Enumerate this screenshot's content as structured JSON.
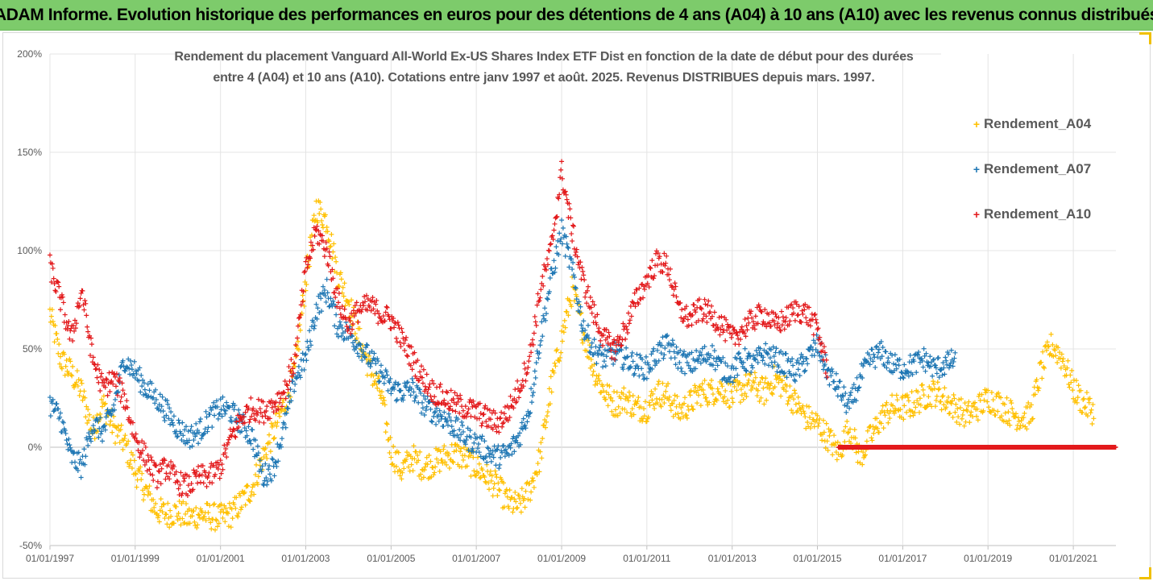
{
  "banner": {
    "title": "ADAM Informe. Evolution historique des performances en euros pour des détentions de 4 ans (A04) à 10 ans (A10) avec les revenus connus distribués"
  },
  "chart_data": {
    "type": "scatter",
    "title_line1": "Rendement du placement Vanguard All-World Ex-US Shares Index ETF Dist en fonction de la date de début pour des durées",
    "title_line2": "entre 4 (A04) et 10 ans (A10). Cotations entre janv 1997 et août. 2025. Revenus DISTRIBUES depuis mars. 1997.",
    "xlim": [
      "1997-01-01",
      "2022-01-01"
    ],
    "ylim": [
      -50,
      200
    ],
    "y_ticks": [
      -50,
      0,
      50,
      100,
      150,
      200
    ],
    "y_tick_labels": [
      "-50%",
      "0%",
      "50%",
      "100%",
      "150%",
      "200%"
    ],
    "x_ticks": [
      "1997-01-01",
      "1999-01-01",
      "2001-01-01",
      "2003-01-01",
      "2005-01-01",
      "2007-01-01",
      "2009-01-01",
      "2011-01-01",
      "2013-01-01",
      "2015-01-01",
      "2017-01-01",
      "2019-01-01",
      "2021-01-01"
    ],
    "x_tick_labels": [
      "01/01/1997",
      "01/01/1999",
      "01/01/2001",
      "01/01/2003",
      "01/01/2005",
      "01/01/2007",
      "01/01/2009",
      "01/01/2011",
      "01/01/2013",
      "01/01/2015",
      "01/01/2017",
      "01/01/2019",
      "01/01/2021"
    ],
    "grid": "horizontal",
    "legend_position": "right",
    "marker": "+",
    "series": [
      {
        "name": "Rendement_A04",
        "color": "#ffc000",
        "x": [
          "1997-01-01",
          "1997-04-01",
          "1997-07-01",
          "1997-10-01",
          "1998-01-01",
          "1998-04-01",
          "1998-07-01",
          "1998-10-01",
          "1999-01-01",
          "1999-04-01",
          "1999-07-01",
          "1999-10-01",
          "2000-01-01",
          "2000-04-01",
          "2000-07-01",
          "2000-10-01",
          "2001-01-01",
          "2001-04-01",
          "2001-07-01",
          "2001-10-01",
          "2002-01-01",
          "2002-04-01",
          "2002-07-01",
          "2002-10-01",
          "2003-01-01",
          "2003-04-01",
          "2003-07-01",
          "2003-10-01",
          "2004-01-01",
          "2004-04-01",
          "2004-07-01",
          "2004-10-01",
          "2005-01-01",
          "2005-04-01",
          "2005-07-01",
          "2005-10-01",
          "2006-01-01",
          "2006-04-01",
          "2006-07-01",
          "2006-10-01",
          "2007-01-01",
          "2007-04-01",
          "2007-07-01",
          "2007-10-01",
          "2008-01-01",
          "2008-04-01",
          "2008-07-01",
          "2008-10-01",
          "2009-01-01",
          "2009-04-01",
          "2009-07-01",
          "2009-10-01",
          "2010-01-01",
          "2010-04-01",
          "2010-07-01",
          "2010-10-01",
          "2011-01-01",
          "2011-04-01",
          "2011-07-01",
          "2011-10-01",
          "2012-01-01",
          "2012-04-01",
          "2012-07-01",
          "2012-10-01",
          "2013-01-01",
          "2013-04-01",
          "2013-07-01",
          "2013-10-01",
          "2014-01-01",
          "2014-04-01",
          "2014-07-01",
          "2014-10-01",
          "2015-01-01",
          "2015-04-01",
          "2015-07-01",
          "2015-10-01",
          "2016-01-01",
          "2016-04-01",
          "2016-07-01",
          "2016-10-01",
          "2017-01-01",
          "2017-04-01",
          "2017-07-01",
          "2017-10-01",
          "2018-01-01",
          "2018-04-01",
          "2018-07-01",
          "2018-10-01",
          "2019-01-01",
          "2019-04-01",
          "2019-07-01",
          "2019-10-01",
          "2020-01-01",
          "2020-04-01",
          "2020-07-01",
          "2020-10-01",
          "2021-01-01",
          "2021-04-01",
          "2021-07-01"
        ],
        "y": [
          68,
          45,
          38,
          28,
          8,
          22,
          10,
          2,
          -12,
          -22,
          -32,
          -34,
          -33,
          -36,
          -34,
          -35,
          -36,
          -34,
          -28,
          -20,
          -5,
          8,
          22,
          38,
          85,
          122,
          115,
          88,
          75,
          55,
          40,
          28,
          -2,
          -12,
          -5,
          -10,
          -8,
          -5,
          -3,
          -6,
          -10,
          -15,
          -20,
          -28,
          -30,
          -22,
          -5,
          30,
          55,
          80,
          60,
          40,
          28,
          22,
          25,
          20,
          20,
          28,
          26,
          18,
          22,
          28,
          28,
          30,
          26,
          30,
          32,
          28,
          35,
          30,
          22,
          15,
          12,
          5,
          -3,
          10,
          -5,
          5,
          15,
          20,
          20,
          22,
          26,
          28,
          24,
          20,
          16,
          20,
          25,
          22,
          18,
          15,
          16,
          40,
          52,
          45,
          30,
          22,
          18
        ],
        "spread": 7
      },
      {
        "name": "Rendement_A07",
        "color": "#1f77b4",
        "x": [
          "1997-01-01",
          "1997-04-01",
          "1997-07-01",
          "1997-10-01",
          "1998-01-01",
          "1998-04-01",
          "1998-07-01",
          "1998-10-01",
          "1999-01-01",
          "1999-04-01",
          "1999-07-01",
          "1999-10-01",
          "2000-01-01",
          "2000-04-01",
          "2000-07-01",
          "2000-10-01",
          "2001-01-01",
          "2001-04-01",
          "2001-07-01",
          "2001-10-01",
          "2002-01-01",
          "2002-04-01",
          "2002-07-01",
          "2002-10-01",
          "2003-01-01",
          "2003-04-01",
          "2003-07-01",
          "2003-10-01",
          "2004-01-01",
          "2004-04-01",
          "2004-07-01",
          "2004-10-01",
          "2005-01-01",
          "2005-04-01",
          "2005-07-01",
          "2005-10-01",
          "2006-01-01",
          "2006-04-01",
          "2006-07-01",
          "2006-10-01",
          "2007-01-01",
          "2007-04-01",
          "2007-07-01",
          "2007-10-01",
          "2008-01-01",
          "2008-04-01",
          "2008-07-01",
          "2008-10-01",
          "2009-01-01",
          "2009-04-01",
          "2009-07-01",
          "2009-10-01",
          "2010-01-01",
          "2010-04-01",
          "2010-07-01",
          "2010-10-01",
          "2011-01-01",
          "2011-04-01",
          "2011-07-01",
          "2011-10-01",
          "2012-01-01",
          "2012-04-01",
          "2012-07-01",
          "2012-10-01",
          "2013-01-01",
          "2013-04-01",
          "2013-07-01",
          "2013-10-01",
          "2014-01-01",
          "2014-04-01",
          "2014-07-01",
          "2014-10-01",
          "2015-01-01",
          "2015-04-01",
          "2015-07-01",
          "2015-10-01",
          "2016-01-01",
          "2016-04-01",
          "2016-07-01",
          "2016-10-01",
          "2017-01-01",
          "2017-04-01",
          "2017-07-01",
          "2017-10-01",
          "2018-01-01",
          "2018-04-01"
        ],
        "y": [
          22,
          15,
          -5,
          -10,
          12,
          8,
          20,
          45,
          38,
          30,
          25,
          18,
          10,
          5,
          8,
          15,
          20,
          18,
          12,
          5,
          -15,
          -10,
          10,
          35,
          45,
          70,
          80,
          62,
          58,
          52,
          45,
          38,
          30,
          28,
          30,
          22,
          18,
          15,
          10,
          5,
          2,
          -2,
          -5,
          -3,
          5,
          20,
          55,
          85,
          110,
          90,
          62,
          50,
          45,
          48,
          45,
          42,
          40,
          48,
          52,
          45,
          42,
          45,
          48,
          40,
          38,
          45,
          42,
          48,
          45,
          42,
          38,
          45,
          52,
          38,
          30,
          20,
          35,
          45,
          48,
          42,
          40,
          42,
          45,
          40,
          42,
          45
        ],
        "spread": 6
      },
      {
        "name": "Rendement_A10",
        "color": "#e31a1c",
        "x": [
          "1997-01-01",
          "1997-04-01",
          "1997-07-01",
          "1997-10-01",
          "1998-01-01",
          "1998-04-01",
          "1998-07-01",
          "1998-10-01",
          "1999-01-01",
          "1999-04-01",
          "1999-07-01",
          "1999-10-01",
          "2000-01-01",
          "2000-04-01",
          "2000-07-01",
          "2000-10-01",
          "2001-01-01",
          "2001-04-01",
          "2001-07-01",
          "2001-10-01",
          "2002-01-01",
          "2002-04-01",
          "2002-07-01",
          "2002-10-01",
          "2003-01-01",
          "2003-04-01",
          "2003-07-01",
          "2003-10-01",
          "2004-01-01",
          "2004-04-01",
          "2004-07-01",
          "2004-10-01",
          "2005-01-01",
          "2005-04-01",
          "2005-07-01",
          "2005-10-01",
          "2006-01-01",
          "2006-04-01",
          "2006-07-01",
          "2006-10-01",
          "2007-01-01",
          "2007-04-01",
          "2007-07-01",
          "2007-10-01",
          "2008-01-01",
          "2008-04-01",
          "2008-07-01",
          "2008-10-01",
          "2009-01-01",
          "2009-04-01",
          "2009-07-01",
          "2009-10-01",
          "2010-01-01",
          "2010-04-01",
          "2010-07-01",
          "2010-10-01",
          "2011-01-01",
          "2011-04-01",
          "2011-07-01",
          "2011-10-01",
          "2012-01-01",
          "2012-04-01",
          "2012-07-01",
          "2012-10-01",
          "2013-01-01",
          "2013-04-01",
          "2013-07-01",
          "2013-10-01",
          "2014-01-01",
          "2014-04-01",
          "2014-07-01",
          "2014-10-01",
          "2015-01-01",
          "2015-04-01"
        ],
        "y": [
          92,
          75,
          55,
          80,
          45,
          30,
          35,
          25,
          5,
          -5,
          -15,
          -10,
          -18,
          -20,
          -15,
          -15,
          -10,
          5,
          15,
          20,
          18,
          22,
          28,
          45,
          90,
          110,
          100,
          75,
          62,
          70,
          72,
          68,
          65,
          55,
          45,
          35,
          28,
          25,
          22,
          20,
          18,
          15,
          12,
          18,
          30,
          45,
          80,
          100,
          140,
          110,
          85,
          68,
          55,
          50,
          60,
          75,
          85,
          95,
          92,
          70,
          65,
          70,
          68,
          62,
          55,
          60,
          65,
          68,
          62,
          65,
          70,
          68,
          60,
          38
        ],
        "spread": 6
      },
      {
        "name": "Rendement_A10",
        "color": "#e31a1c",
        "x": [
          "2015-07-01",
          "2022-01-01"
        ],
        "y": [
          0,
          0
        ],
        "spread": 0,
        "dense": true
      }
    ]
  }
}
